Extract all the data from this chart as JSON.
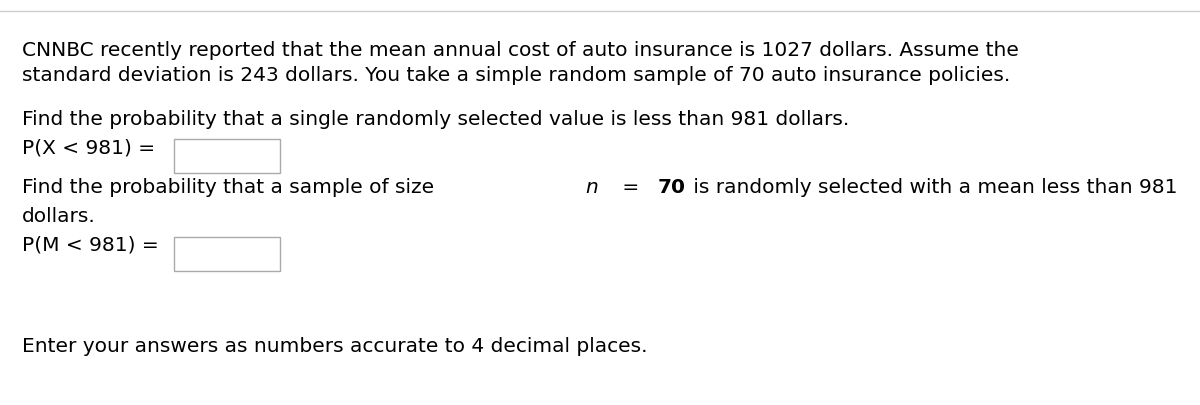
{
  "bg_color": "#ffffff",
  "top_border_color": "#cccccc",
  "text_color": "#000000",
  "font_family": "DejaVu Sans",
  "line1": "CNNBC recently reported that the mean annual cost of auto insurance is 1027 dollars. Assume the",
  "line2": "standard deviation is 243 dollars. You take a simple random sample of 70 auto insurance policies.",
  "task1_line": "Find the probability that a single randomly selected value is less than 981 dollars.",
  "task1_label": "P(X < 981) =",
  "task2_line1_pre": "Find the probability that a sample of size ",
  "task2_n": "n",
  "task2_eq": " = ",
  "task2_70": "70",
  "task2_line1_post": " is randomly selected with a mean less than 981",
  "task2_line2": "dollars.",
  "task2_label": "P(M < 981) =",
  "footer": "Enter your answers as numbers accurate to 4 decimal places.",
  "fontsize": 14.5,
  "box_color": "#aaaaaa",
  "box_facecolor": "#ffffff"
}
